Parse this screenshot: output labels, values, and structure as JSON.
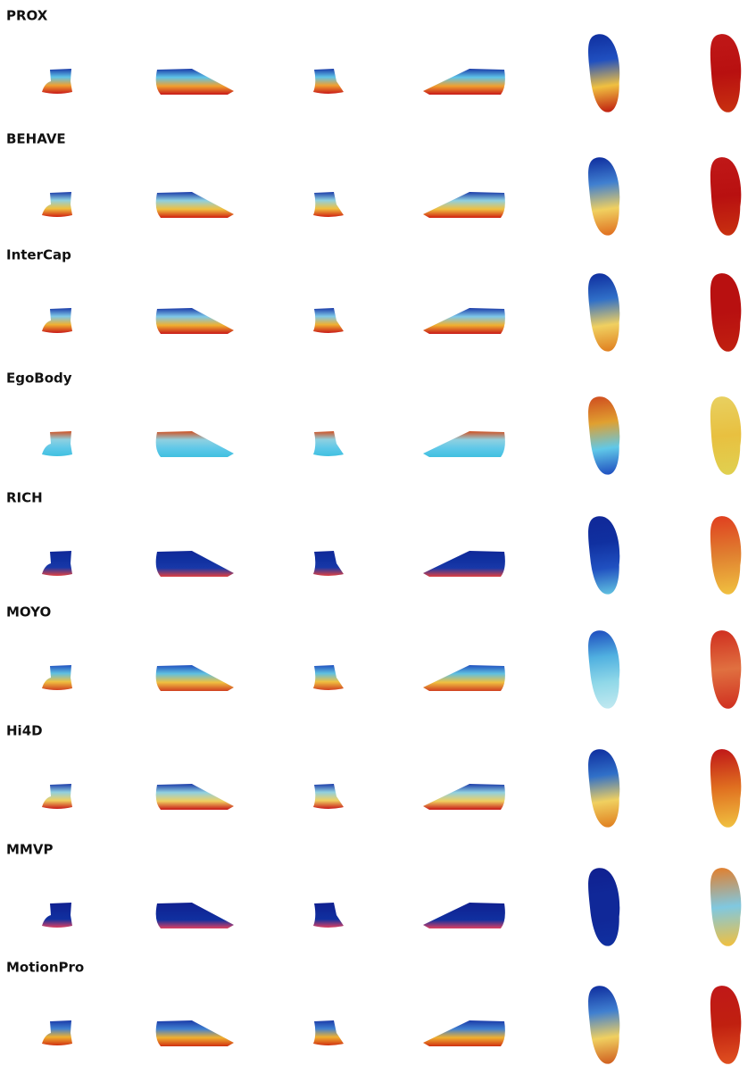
{
  "rows": [
    {
      "label": "PROX"
    },
    {
      "label": "BEHAVE"
    },
    {
      "label": "InterCap"
    },
    {
      "label": "EgoBody"
    },
    {
      "label": "RICH"
    },
    {
      "label": "MOYO"
    },
    {
      "label": "Hi4D"
    },
    {
      "label": "MMVP"
    },
    {
      "label": "MotionPro"
    }
  ]
}
